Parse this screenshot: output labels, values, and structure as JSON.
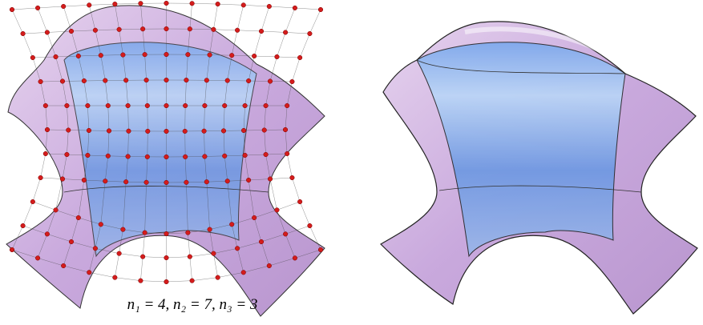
{
  "figure": {
    "caption": "n₁ = 4, n₂ = 7, n₃ = 3"
  }
}
